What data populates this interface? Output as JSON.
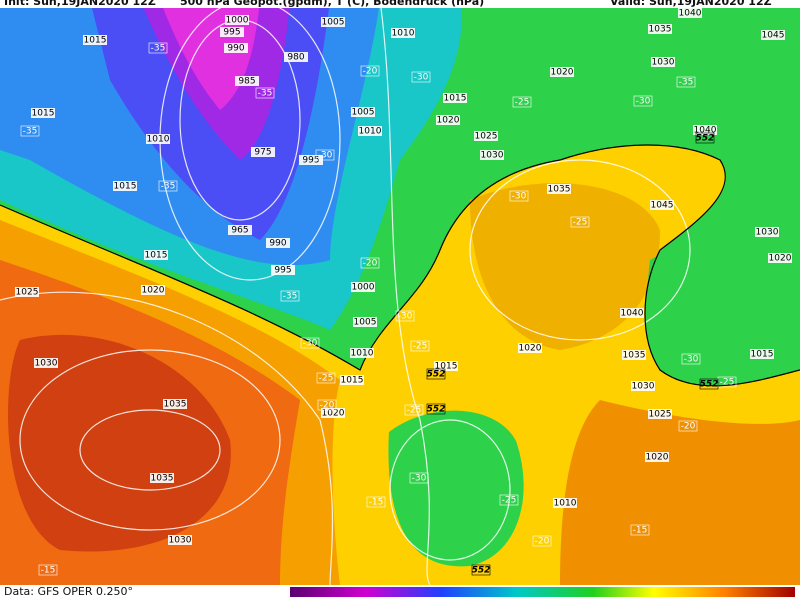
{
  "header": {
    "init": "Init: Sun,19JAN2020 12Z",
    "title": "500 hPa Geopot.(gpdm), T (C), Bodendruck (hPa)",
    "valid": "Valid: Sun,19JAN2020 12Z"
  },
  "footer": {
    "source": "Data: GFS OPER 0.250°"
  },
  "pressure_labels": [
    "1015",
    "1000",
    "995",
    "1005",
    "1010",
    "990",
    "980",
    "985",
    "1015",
    "1010",
    "1005",
    "1010",
    "975",
    "995",
    "1015",
    "965",
    "990",
    "995",
    "1015",
    "1020",
    "1025",
    "1000",
    "1005",
    "1010",
    "1015",
    "1020",
    "1030",
    "1035",
    "1035",
    "1030",
    "1015",
    "1020",
    "1025",
    "1030",
    "1020",
    "1040",
    "1035",
    "1045",
    "1030",
    "1035",
    "1045",
    "1040",
    "1030",
    "1020",
    "1020",
    "1015",
    "1040",
    "1035",
    "1030",
    "1025",
    "1020",
    "1015",
    "1010"
  ],
  "temperature_labels": [
    "-35",
    "-35",
    "-35",
    "-35",
    "-30",
    "-35",
    "-30",
    "-25",
    "-20",
    "-15",
    "-25",
    "-30",
    "-20",
    "-30",
    "-25",
    "-30",
    "-35",
    "-30",
    "-25",
    "-30",
    "-25",
    "-20",
    "-15",
    "-20",
    "-25",
    "-30",
    "-25",
    "-15",
    "-20"
  ],
  "height_labels": [
    "552",
    "552",
    "552",
    "552",
    "552"
  ]
}
